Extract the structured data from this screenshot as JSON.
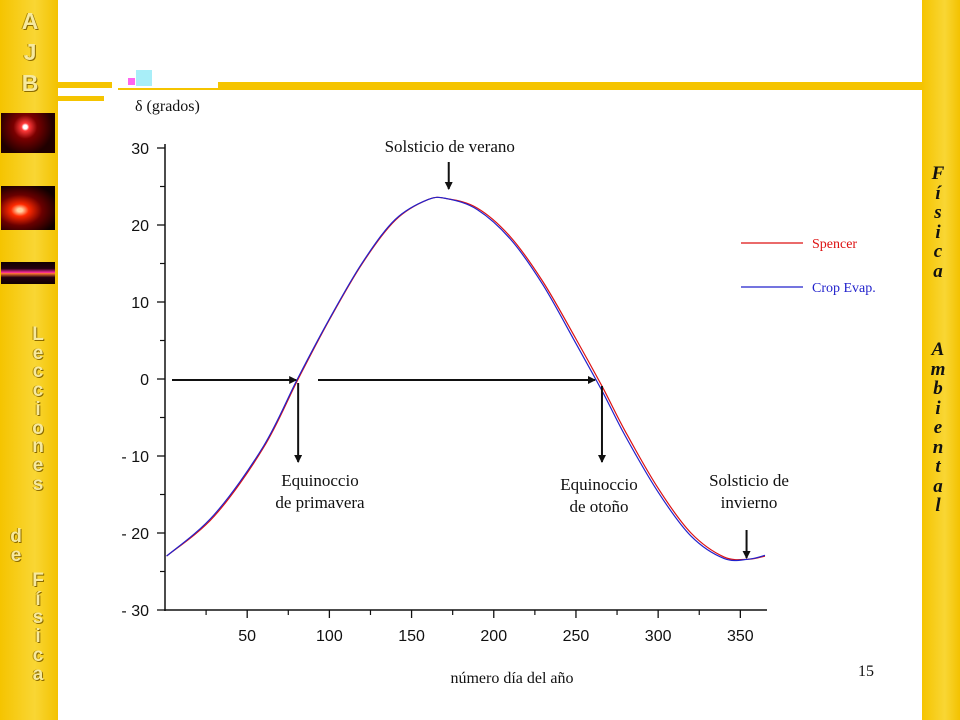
{
  "sidebar": {
    "logo_letters": [
      "A",
      "J",
      "B"
    ],
    "series_letters": [
      "L",
      "e",
      "c",
      "c",
      "i",
      "o",
      "n",
      "e",
      "s"
    ],
    "de_letters": [
      "d",
      "e"
    ],
    "fisica_letters": [
      "F",
      "í",
      "s",
      "i",
      "c",
      "a"
    ]
  },
  "right_sidebar": {
    "fisica_letters": [
      "F",
      "í",
      "s",
      "i",
      "c",
      "a"
    ],
    "ambiental_letters": [
      "A",
      "m",
      "b",
      "i",
      "e",
      "n",
      "t",
      "a",
      "l"
    ]
  },
  "page_number": "15",
  "colors": {
    "sidebar": "#f5c400",
    "accent_line": "#f5c400",
    "spencer": "#dd1111",
    "crop_evap": "#2222cc"
  },
  "chart_data": {
    "type": "line",
    "xlabel": "número día del año",
    "ylabel": "δ (grados)",
    "xlim": [
      0,
      365
    ],
    "ylim": [
      -30,
      30
    ],
    "x_ticks": [
      50,
      100,
      150,
      200,
      250,
      300,
      350
    ],
    "y_ticks": [
      30,
      20,
      10,
      0,
      -10,
      -20,
      -30
    ],
    "x_tick_labels": [
      "50",
      "100",
      "150",
      "200",
      "250",
      "300",
      "350"
    ],
    "y_tick_labels": [
      "30",
      "20",
      "10",
      "0",
      "- 10",
      "- 20",
      "- 30"
    ],
    "grid": false,
    "legend_position": "right",
    "series": [
      {
        "name": "Spencer",
        "color": "#dd1111",
        "phase_shift_days": 0,
        "x": [
          1,
          30,
          60,
          81,
          100,
          120,
          140,
          160,
          172,
          190,
          210,
          230,
          250,
          266,
          280,
          300,
          320,
          340,
          355,
          365
        ],
        "y": [
          -23.0,
          -17.8,
          -8.9,
          0.0,
          7.7,
          15.0,
          20.6,
          23.3,
          23.4,
          22.2,
          18.5,
          12.6,
          5.2,
          -1.0,
          -6.8,
          -14.2,
          -20.0,
          -23.1,
          -23.4,
          -23.0
        ]
      },
      {
        "name": "Crop Evap.",
        "color": "#2222cc",
        "phase_shift_days": -2,
        "x": [
          1,
          30,
          60,
          81,
          100,
          120,
          140,
          160,
          172,
          190,
          210,
          230,
          250,
          266,
          280,
          300,
          320,
          340,
          355,
          365
        ],
        "y": [
          -23.0,
          -17.6,
          -8.7,
          0.2,
          7.8,
          15.1,
          20.7,
          23.3,
          23.4,
          22.0,
          18.2,
          12.2,
          4.6,
          -1.6,
          -7.4,
          -14.7,
          -20.4,
          -23.3,
          -23.4,
          -22.9
        ]
      }
    ],
    "annotations": [
      {
        "name": "summer-solstice",
        "lines": [
          "Solsticio de verano"
        ],
        "day": 172,
        "value": 23.4
      },
      {
        "name": "spring-equinox",
        "lines": [
          "Equinoccio",
          "de primavera"
        ],
        "day": 81,
        "value": 0
      },
      {
        "name": "autumn-equinox",
        "lines": [
          "Equinoccio",
          "de otoño"
        ],
        "day": 264,
        "value": 0
      },
      {
        "name": "winter-solstice",
        "lines": [
          "Solsticio de",
          "invierno"
        ],
        "day": 355,
        "value": -23.4
      }
    ]
  }
}
